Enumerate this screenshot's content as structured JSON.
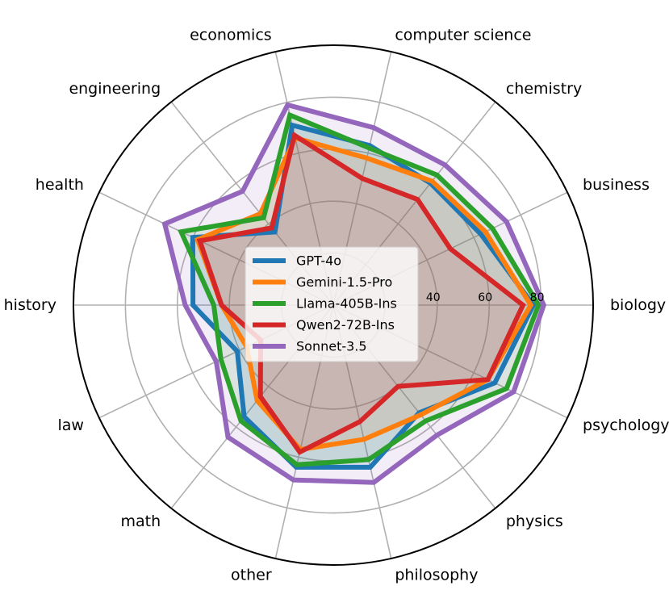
{
  "chart_data": {
    "type": "radar",
    "title": "",
    "categories": [
      "biology",
      "business",
      "chemistry",
      "computer science",
      "economics",
      "engineering",
      "health",
      "history",
      "law",
      "math",
      "other",
      "philosophy",
      "physics",
      "psychology"
    ],
    "radial_ticks": [
      40,
      60,
      80
    ],
    "radial_range": [
      0,
      100
    ],
    "grid": true,
    "legend_position": "center",
    "series": [
      {
        "name": "GPT-4o",
        "color": "#1f77b4",
        "values": [
          77,
          63,
          60,
          63,
          71,
          36,
          60,
          54,
          41,
          55,
          64,
          64,
          53,
          69
        ]
      },
      {
        "name": "Gemini-1.5-Pro",
        "color": "#ff7f0e",
        "values": [
          76,
          65,
          61,
          58,
          66,
          45,
          58,
          43,
          37,
          47,
          57,
          53,
          54,
          66
        ]
      },
      {
        "name": "Llama-405B-Ins",
        "color": "#2ca02c",
        "values": [
          79,
          68,
          64,
          62,
          75,
          43,
          65,
          46,
          48,
          57,
          63,
          61,
          57,
          74
        ]
      },
      {
        "name": "Qwen2-72B-Ins",
        "color": "#d62728",
        "values": [
          73,
          50,
          52,
          50,
          67,
          38,
          57,
          43,
          31,
          45,
          58,
          46,
          40,
          66
        ]
      },
      {
        "name": "Sonnet-3.5",
        "color": "#9467bd",
        "values": [
          81,
          74,
          69,
          70,
          79,
          56,
          72,
          57,
          50,
          65,
          69,
          70,
          64,
          77
        ]
      }
    ]
  }
}
